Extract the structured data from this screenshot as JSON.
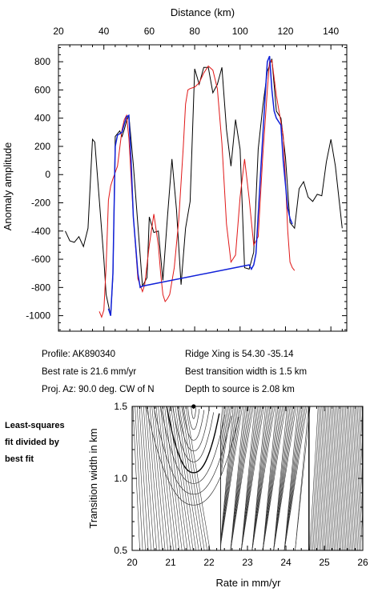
{
  "colors": {
    "observed": "#000000",
    "synthetic": "#e01818",
    "fit": "#1020d8",
    "background": "#ffffff"
  },
  "info": {
    "profile": "Profile: AK890340",
    "best_rate": "Best rate is 21.6 mm/yr",
    "proj_az": "Proj. Az: 90.0 deg. CW of N",
    "ridge_xing": "Ridge Xing is 54.30 -35.14",
    "best_width": "Best transition width is 1.5 km",
    "depth": "Depth to source is   2.08 km"
  },
  "side_note": [
    "Least-squares",
    "fit divided by",
    "best fit"
  ],
  "chart_data": [
    {
      "type": "line",
      "xlabel": "Distance (km)",
      "ylabel": "Anomaly amplitude",
      "xlim": [
        20,
        147
      ],
      "ylim": [
        -1110,
        920
      ],
      "x_ticks": [
        20,
        40,
        60,
        80,
        100,
        120,
        140
      ],
      "y_ticks": [
        800,
        600,
        400,
        200,
        0,
        -200,
        -400,
        -600,
        -800,
        -1000
      ],
      "grid": false,
      "series": [
        {
          "role": "observed",
          "color": "#000000",
          "x": [
            23,
            25,
            27,
            29,
            31,
            33,
            35,
            36,
            38,
            40,
            41,
            43,
            44,
            45,
            47,
            48,
            49,
            50,
            51,
            53,
            55,
            57,
            59,
            60,
            62,
            64,
            66,
            68,
            70,
            72,
            74,
            76,
            78,
            80,
            82,
            84,
            86,
            88,
            90,
            92,
            94,
            96,
            98,
            100,
            102,
            104,
            106,
            108,
            110,
            112,
            114,
            116,
            118,
            120,
            122,
            124,
            126,
            128,
            130,
            132,
            134,
            136,
            138,
            140,
            142,
            145
          ],
          "y": [
            -400,
            -470,
            -480,
            -440,
            -510,
            -380,
            250,
            230,
            -180,
            -600,
            -850,
            -1000,
            -720,
            270,
            310,
            270,
            320,
            380,
            420,
            70,
            -360,
            -790,
            -730,
            -300,
            -410,
            -400,
            -750,
            -300,
            110,
            -250,
            -780,
            -380,
            -190,
            750,
            640,
            760,
            760,
            580,
            640,
            760,
            320,
            60,
            390,
            180,
            -660,
            -670,
            -550,
            180,
            480,
            730,
            820,
            450,
            400,
            120,
            -340,
            -380,
            -100,
            -50,
            -160,
            -190,
            -140,
            -150,
            90,
            250,
            60,
            -380
          ]
        },
        {
          "role": "fit",
          "color": "#1020d8",
          "x": [
            42,
            43,
            44,
            45,
            46,
            48,
            49,
            50,
            51,
            52,
            53,
            55,
            56,
            57,
            104,
            105,
            106,
            107,
            109,
            111,
            112,
            113,
            114,
            115,
            116,
            118,
            119,
            121,
            122,
            123
          ],
          "y": [
            -950,
            -1000,
            -700,
            200,
            280,
            300,
            360,
            410,
            420,
            100,
            -300,
            -700,
            -800,
            -790,
            -640,
            -670,
            -640,
            -560,
            0,
            550,
            800,
            840,
            600,
            450,
            400,
            350,
            100,
            -240,
            -310,
            -350
          ]
        },
        {
          "role": "synthetic",
          "color": "#e01818",
          "x": [
            38,
            39,
            40,
            41,
            42,
            43,
            44,
            46,
            48,
            49,
            50,
            51,
            53,
            55,
            57,
            58,
            60,
            62,
            64,
            65,
            66,
            67,
            68,
            69,
            71,
            73,
            75,
            76,
            77,
            78,
            80,
            82,
            84,
            86,
            88,
            90,
            92,
            94,
            96,
            98,
            100,
            102,
            104,
            106,
            108,
            110,
            112,
            113,
            114,
            116,
            118,
            119,
            120,
            121,
            122,
            123,
            124
          ],
          "y": [
            -970,
            -1010,
            -960,
            -650,
            -180,
            -80,
            -30,
            60,
            320,
            390,
            420,
            260,
            -300,
            -740,
            -830,
            -780,
            -500,
            -280,
            -500,
            -700,
            -850,
            -900,
            -880,
            -850,
            -660,
            -320,
            200,
            500,
            600,
            610,
            620,
            650,
            720,
            770,
            740,
            610,
            220,
            -350,
            -620,
            -570,
            -160,
            110,
            -170,
            -500,
            -440,
            130,
            600,
            800,
            810,
            560,
            370,
            280,
            -40,
            -400,
            -620,
            -660,
            -680
          ]
        }
      ]
    },
    {
      "type": "contour",
      "xlabel": "Rate in mm/yr",
      "ylabel": "Transition width in km",
      "xlim": [
        20,
        26
      ],
      "ylim": [
        0.5,
        1.5
      ],
      "x_ticks": [
        20,
        21,
        22,
        23,
        24,
        25,
        26
      ],
      "y_ticks": [
        1.5,
        1.0,
        0.5
      ],
      "best_fit_point": {
        "rate": 21.6,
        "width": 1.5
      }
    }
  ]
}
